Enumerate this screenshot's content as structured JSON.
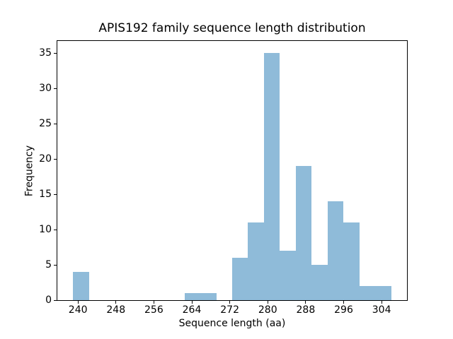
{
  "chart_data": {
    "type": "bar",
    "subtype": "histogram",
    "title": "APIS192 family sequence length distribution",
    "xlabel": "Sequence length (aa)",
    "ylabel": "Frequency",
    "bin_edges": [
      239.0,
      242.35,
      245.7,
      249.05,
      252.4,
      255.75,
      259.1,
      262.45,
      265.8,
      269.15,
      272.5,
      275.85,
      279.2,
      282.55,
      285.9,
      289.25,
      292.6,
      295.95,
      299.3,
      302.65,
      306.0
    ],
    "counts": [
      4,
      0,
      0,
      0,
      0,
      0,
      0,
      1,
      1,
      0,
      6,
      11,
      35,
      7,
      19,
      5,
      14,
      11,
      2,
      2
    ],
    "xticks": [
      240,
      248,
      256,
      264,
      272,
      280,
      288,
      296,
      304
    ],
    "yticks": [
      0,
      5,
      10,
      15,
      20,
      25,
      30,
      35
    ],
    "xlim": [
      235.65,
      309.35
    ],
    "ylim": [
      0,
      36.75
    ],
    "bar_color": "#8fbbd9",
    "axis_color": "#000000",
    "background_color": "#ffffff",
    "grid": false,
    "legend_position": "none"
  }
}
